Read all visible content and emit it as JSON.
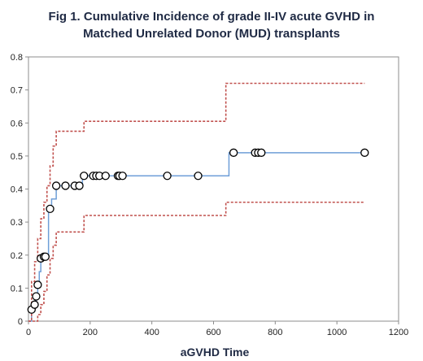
{
  "chart_data": {
    "type": "line",
    "title_lines": [
      "Fig 1. Cumulative Incidence  of grade II-IV acute GVHD in",
      "Matched Unrelated Donor (MUD) transplants"
    ],
    "xlabel": "aGVHD Time",
    "ylabel": "",
    "xlim": [
      0,
      1200
    ],
    "ylim": [
      0,
      0.8
    ],
    "x_ticks": [
      0,
      200,
      400,
      600,
      800,
      1000,
      1200
    ],
    "y_ticks": [
      0,
      0.1,
      0.2,
      0.3,
      0.4,
      0.5,
      0.6,
      0.7,
      0.8
    ],
    "x_tick_labels": [
      "0",
      "200",
      "400",
      "600",
      "800",
      "1000",
      "1200"
    ],
    "y_tick_labels": [
      "0",
      "0.1",
      "0.2",
      "0.3",
      "0.4",
      "0.5",
      "0.6",
      "0.7",
      "0.8"
    ],
    "grid": false,
    "legend": "none",
    "series": [
      {
        "role": "estimate",
        "style": "solid",
        "color": "#6f9fd8",
        "x": [
          0,
          10,
          20,
          25,
          30,
          35,
          40,
          45,
          55,
          65,
          75,
          90,
          100,
          120,
          150,
          165,
          175,
          180,
          210,
          630,
          650,
          1090
        ],
        "y": [
          0,
          0.03,
          0.05,
          0.07,
          0.11,
          0.15,
          0.19,
          0.2,
          0.2,
          0.34,
          0.37,
          0.41,
          0.41,
          0.41,
          0.41,
          0.41,
          0.44,
          0.44,
          0.44,
          0.44,
          0.51,
          0.51
        ]
      },
      {
        "role": "upper-ci",
        "style": "dashed",
        "color": "#c0504d",
        "x": [
          0,
          10,
          20,
          30,
          40,
          50,
          60,
          70,
          80,
          90,
          175,
          180,
          630,
          640,
          1090
        ],
        "y": [
          0,
          0.12,
          0.18,
          0.25,
          0.31,
          0.36,
          0.41,
          0.47,
          0.53,
          0.575,
          0.575,
          0.605,
          0.605,
          0.72,
          0.72
        ]
      },
      {
        "role": "lower-ci",
        "style": "dashed",
        "color": "#c0504d",
        "x": [
          0,
          20,
          30,
          40,
          50,
          60,
          70,
          80,
          90,
          175,
          180,
          630,
          640,
          1090
        ],
        "y": [
          0,
          0,
          0.02,
          0.05,
          0.09,
          0.14,
          0.19,
          0.23,
          0.27,
          0.27,
          0.32,
          0.32,
          0.36,
          0.36
        ]
      },
      {
        "role": "censored",
        "marker": "circle",
        "color": "#000000",
        "x": [
          10,
          20,
          25,
          30,
          40,
          50,
          55,
          70,
          90,
          120,
          150,
          165,
          180,
          210,
          220,
          230,
          250,
          290,
          295,
          305,
          450,
          550,
          665,
          735,
          745,
          755,
          1090
        ],
        "y": [
          0.035,
          0.05,
          0.075,
          0.11,
          0.19,
          0.195,
          0.195,
          0.34,
          0.41,
          0.41,
          0.41,
          0.41,
          0.44,
          0.44,
          0.44,
          0.44,
          0.44,
          0.44,
          0.44,
          0.44,
          0.44,
          0.44,
          0.51,
          0.51,
          0.51,
          0.51,
          0.51
        ]
      }
    ]
  }
}
